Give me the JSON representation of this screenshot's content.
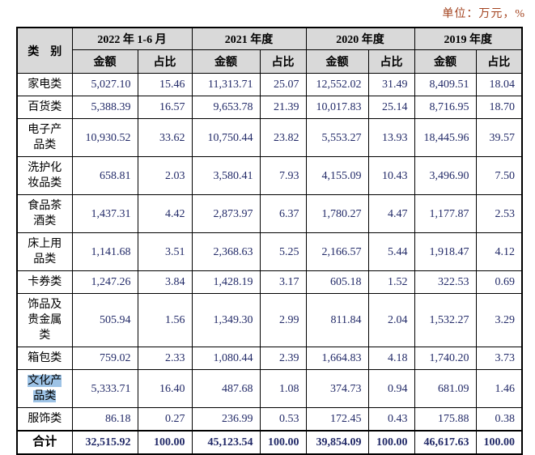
{
  "unit_note": "单位：万元，%",
  "table": {
    "category_header": "类　别",
    "period_groups": [
      {
        "label": "2022 年 1-6 月",
        "sub": [
          "金额",
          "占比"
        ]
      },
      {
        "label": "2021 年度",
        "sub": [
          "金额",
          "占比"
        ]
      },
      {
        "label": "2020 年度",
        "sub": [
          "金额",
          "占比"
        ]
      },
      {
        "label": "2019 年度",
        "sub": [
          "金额",
          "占比"
        ]
      }
    ],
    "rows": [
      {
        "category": "家电类",
        "highlighted": false,
        "values": [
          "5,027.10",
          "15.46",
          "11,313.71",
          "25.07",
          "12,552.02",
          "31.49",
          "8,409.51",
          "18.04"
        ]
      },
      {
        "category": "百货类",
        "highlighted": false,
        "values": [
          "5,388.39",
          "16.57",
          "9,653.78",
          "21.39",
          "10,017.83",
          "25.14",
          "8,716.95",
          "18.70"
        ]
      },
      {
        "category": "电子产品类",
        "highlighted": false,
        "values": [
          "10,930.52",
          "33.62",
          "10,750.44",
          "23.82",
          "5,553.27",
          "13.93",
          "18,445.96",
          "39.57"
        ]
      },
      {
        "category": "洗护化妆品类",
        "highlighted": false,
        "values": [
          "658.81",
          "2.03",
          "3,580.41",
          "7.93",
          "4,155.09",
          "10.43",
          "3,496.90",
          "7.50"
        ]
      },
      {
        "category": "食品茶酒类",
        "highlighted": false,
        "values": [
          "1,437.31",
          "4.42",
          "2,873.97",
          "6.37",
          "1,780.27",
          "4.47",
          "1,177.87",
          "2.53"
        ]
      },
      {
        "category": "床上用品类",
        "highlighted": false,
        "values": [
          "1,141.68",
          "3.51",
          "2,368.63",
          "5.25",
          "2,166.57",
          "5.44",
          "1,918.47",
          "4.12"
        ]
      },
      {
        "category": "卡券类",
        "highlighted": false,
        "values": [
          "1,247.26",
          "3.84",
          "1,428.19",
          "3.17",
          "605.18",
          "1.52",
          "322.53",
          "0.69"
        ]
      },
      {
        "category": "饰品及贵金属类",
        "highlighted": false,
        "values": [
          "505.94",
          "1.56",
          "1,349.30",
          "2.99",
          "811.84",
          "2.04",
          "1,532.27",
          "3.29"
        ]
      },
      {
        "category": "箱包类",
        "highlighted": false,
        "values": [
          "759.02",
          "2.33",
          "1,080.44",
          "2.39",
          "1,664.83",
          "4.18",
          "1,740.20",
          "3.73"
        ]
      },
      {
        "category": "文化产品类",
        "highlighted": true,
        "values": [
          "5,333.71",
          "16.40",
          "487.68",
          "1.08",
          "374.73",
          "0.94",
          "681.09",
          "1.46"
        ]
      },
      {
        "category": "服饰类",
        "highlighted": false,
        "values": [
          "86.18",
          "0.27",
          "236.99",
          "0.53",
          "172.45",
          "0.43",
          "175.88",
          "0.38"
        ]
      }
    ],
    "total_row": {
      "category": "合计",
      "values": [
        "32,515.92",
        "100.00",
        "45,123.54",
        "100.00",
        "39,854.09",
        "100.00",
        "46,617.63",
        "100.00"
      ]
    }
  },
  "colors": {
    "unit_text": "#a3431f",
    "header_bg": "#d9d9d9",
    "number_text": "#222a68",
    "highlight_bg": "#9dc3e6",
    "border": "#000000"
  }
}
